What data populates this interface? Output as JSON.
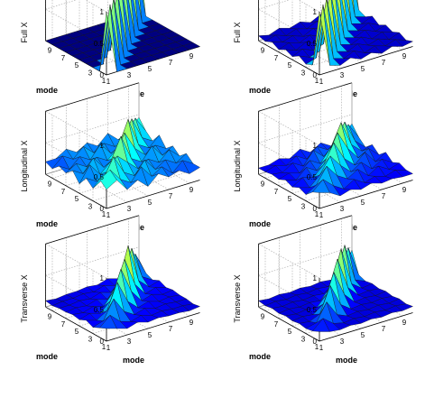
{
  "chart_data": [
    {
      "type": "surface",
      "zlabel": "Full X",
      "xlabel": "mode",
      "ylabel": "mode",
      "x_ticks": [
        "1",
        "3",
        "5",
        "7",
        "9"
      ],
      "y_ticks": [
        "1",
        "3",
        "5",
        "7",
        "9"
      ],
      "z_ticks": [
        "0",
        "0.5",
        "1"
      ],
      "zlim": [
        0,
        1
      ],
      "grid": true,
      "colormap": "jet",
      "values": [
        [
          1,
          0,
          0,
          0,
          0,
          0,
          0,
          0,
          0,
          0
        ],
        [
          0,
          1,
          0,
          0,
          0,
          0,
          0,
          0,
          0,
          0
        ],
        [
          0,
          0,
          1,
          0,
          0,
          0,
          0,
          0,
          0,
          0
        ],
        [
          0,
          0,
          0,
          1,
          0,
          0,
          0,
          0,
          0,
          0
        ],
        [
          0,
          0,
          0,
          0,
          1,
          0,
          0,
          0,
          0,
          0
        ],
        [
          0,
          0,
          0,
          0,
          0,
          1,
          0,
          0,
          0,
          0
        ],
        [
          0,
          0,
          0,
          0,
          0,
          0,
          1,
          0,
          0,
          0
        ],
        [
          0,
          0,
          0,
          0,
          0,
          0,
          0,
          1,
          0,
          0
        ],
        [
          0,
          0,
          0,
          0,
          0,
          0,
          0,
          0,
          1,
          0
        ],
        [
          0,
          0,
          0,
          0,
          0,
          0,
          0,
          0,
          0,
          1
        ]
      ]
    },
    {
      "type": "surface",
      "zlabel": "Full X",
      "xlabel": "mode",
      "ylabel": "mode",
      "x_ticks": [
        "1",
        "3",
        "5",
        "7",
        "9"
      ],
      "y_ticks": [
        "1",
        "3",
        "5",
        "7",
        "9"
      ],
      "z_ticks": [
        "0",
        "0.5",
        "1"
      ],
      "zlim": [
        0,
        1
      ],
      "grid": true,
      "colormap": "jet",
      "values": [
        [
          1,
          0.1,
          0.05,
          0.12,
          0.05,
          0.1,
          0.04,
          0.1,
          0.05,
          0.08
        ],
        [
          0.1,
          1,
          0.1,
          0.05,
          0.12,
          0.04,
          0.1,
          0.05,
          0.1,
          0.04
        ],
        [
          0.05,
          0.1,
          1,
          0.1,
          0.05,
          0.12,
          0.05,
          0.1,
          0.04,
          0.1
        ],
        [
          0.12,
          0.05,
          0.1,
          1,
          0.1,
          0.05,
          0.12,
          0.04,
          0.1,
          0.05
        ],
        [
          0.05,
          0.12,
          0.05,
          0.1,
          1,
          0.1,
          0.05,
          0.12,
          0.05,
          0.1
        ],
        [
          0.1,
          0.04,
          0.12,
          0.05,
          0.1,
          1,
          0.1,
          0.05,
          0.12,
          0.04
        ],
        [
          0.04,
          0.1,
          0.05,
          0.12,
          0.05,
          0.1,
          1,
          0.1,
          0.05,
          0.12
        ],
        [
          0.1,
          0.05,
          0.1,
          0.04,
          0.12,
          0.05,
          0.1,
          1,
          0.1,
          0.05
        ],
        [
          0.05,
          0.1,
          0.04,
          0.1,
          0.05,
          0.12,
          0.05,
          0.1,
          1,
          0.1
        ],
        [
          0.08,
          0.04,
          0.1,
          0.05,
          0.1,
          0.04,
          0.12,
          0.05,
          0.1,
          1
        ]
      ]
    },
    {
      "type": "surface",
      "zlabel": "Longitudinal X",
      "xlabel": "mode",
      "ylabel": "mode",
      "x_ticks": [
        "1",
        "3",
        "5",
        "7",
        "9"
      ],
      "y_ticks": [
        "1",
        "3",
        "5",
        "7",
        "9"
      ],
      "z_ticks": [
        "0",
        "0.5",
        "1"
      ],
      "zlim": [
        0,
        1
      ],
      "grid": true,
      "colormap": "jet",
      "values": [
        [
          0.3,
          0.4,
          0.2,
          0.3,
          0.15,
          0.3,
          0.2,
          0.25,
          0.15,
          0.2
        ],
        [
          0.4,
          0.5,
          0.3,
          0.2,
          0.4,
          0.2,
          0.3,
          0.15,
          0.3,
          0.2
        ],
        [
          0.2,
          0.3,
          0.6,
          0.3,
          0.2,
          0.4,
          0.2,
          0.3,
          0.2,
          0.3
        ],
        [
          0.3,
          0.2,
          0.3,
          0.5,
          0.35,
          0.2,
          0.3,
          0.2,
          0.35,
          0.2
        ],
        [
          0.15,
          0.4,
          0.2,
          0.35,
          0.7,
          0.3,
          0.2,
          0.4,
          0.2,
          0.3
        ],
        [
          0.3,
          0.2,
          0.4,
          0.2,
          0.3,
          0.65,
          0.35,
          0.2,
          0.3,
          0.2
        ],
        [
          0.2,
          0.3,
          0.2,
          0.3,
          0.2,
          0.35,
          0.75,
          0.3,
          0.2,
          0.35
        ],
        [
          0.25,
          0.15,
          0.3,
          0.2,
          0.4,
          0.2,
          0.3,
          0.65,
          0.3,
          0.2
        ],
        [
          0.15,
          0.3,
          0.2,
          0.35,
          0.2,
          0.3,
          0.2,
          0.3,
          0.55,
          0.3
        ],
        [
          0.2,
          0.2,
          0.3,
          0.2,
          0.3,
          0.2,
          0.35,
          0.2,
          0.3,
          0.45
        ]
      ]
    },
    {
      "type": "surface",
      "zlabel": "Longitudinal X",
      "xlabel": "mode",
      "ylabel": "mode",
      "x_ticks": [
        "1",
        "3",
        "5",
        "7",
        "9"
      ],
      "y_ticks": [
        "1",
        "3",
        "5",
        "7",
        "9"
      ],
      "z_ticks": [
        "0",
        "0.5",
        "1"
      ],
      "zlim": [
        0,
        1
      ],
      "grid": true,
      "colormap": "jet",
      "values": [
        [
          0.25,
          0.2,
          0.1,
          0.15,
          0.1,
          0.15,
          0.1,
          0.12,
          0.1,
          0.1
        ],
        [
          0.2,
          0.35,
          0.2,
          0.1,
          0.2,
          0.1,
          0.15,
          0.1,
          0.15,
          0.1
        ],
        [
          0.1,
          0.2,
          0.45,
          0.25,
          0.15,
          0.25,
          0.1,
          0.2,
          0.1,
          0.15
        ],
        [
          0.15,
          0.1,
          0.25,
          0.5,
          0.3,
          0.15,
          0.25,
          0.1,
          0.2,
          0.1
        ],
        [
          0.1,
          0.2,
          0.15,
          0.3,
          0.6,
          0.3,
          0.15,
          0.3,
          0.1,
          0.2
        ],
        [
          0.15,
          0.1,
          0.25,
          0.15,
          0.3,
          0.65,
          0.35,
          0.15,
          0.25,
          0.1
        ],
        [
          0.1,
          0.15,
          0.1,
          0.25,
          0.15,
          0.35,
          0.7,
          0.3,
          0.15,
          0.2
        ],
        [
          0.12,
          0.1,
          0.2,
          0.1,
          0.3,
          0.15,
          0.3,
          0.6,
          0.25,
          0.1
        ],
        [
          0.1,
          0.15,
          0.1,
          0.2,
          0.1,
          0.25,
          0.15,
          0.25,
          0.45,
          0.2
        ],
        [
          0.1,
          0.1,
          0.15,
          0.1,
          0.2,
          0.1,
          0.2,
          0.1,
          0.2,
          0.35
        ]
      ]
    },
    {
      "type": "surface",
      "zlabel": "Transverse X",
      "xlabel": "mode",
      "ylabel": "mode",
      "x_ticks": [
        "1",
        "3",
        "5",
        "7",
        "9"
      ],
      "y_ticks": [
        "1",
        "3",
        "5",
        "7",
        "9"
      ],
      "z_ticks": [
        "0",
        "0.5",
        "1"
      ],
      "zlim": [
        0,
        1
      ],
      "grid": true,
      "colormap": "jet",
      "values": [
        [
          0.2,
          0.15,
          0.1,
          0.15,
          0.1,
          0.12,
          0.1,
          0.1,
          0.08,
          0.1
        ],
        [
          0.15,
          0.3,
          0.15,
          0.1,
          0.15,
          0.1,
          0.12,
          0.1,
          0.1,
          0.08
        ],
        [
          0.1,
          0.15,
          0.45,
          0.2,
          0.1,
          0.15,
          0.1,
          0.12,
          0.1,
          0.1
        ],
        [
          0.15,
          0.1,
          0.2,
          0.6,
          0.25,
          0.1,
          0.15,
          0.1,
          0.12,
          0.1
        ],
        [
          0.1,
          0.15,
          0.1,
          0.25,
          0.7,
          0.3,
          0.1,
          0.15,
          0.1,
          0.12
        ],
        [
          0.12,
          0.1,
          0.15,
          0.1,
          0.3,
          0.75,
          0.3,
          0.1,
          0.15,
          0.1
        ],
        [
          0.1,
          0.12,
          0.1,
          0.15,
          0.1,
          0.3,
          0.85,
          0.25,
          0.1,
          0.15
        ],
        [
          0.1,
          0.1,
          0.12,
          0.1,
          0.15,
          0.1,
          0.25,
          0.7,
          0.2,
          0.1
        ],
        [
          0.08,
          0.1,
          0.1,
          0.12,
          0.1,
          0.15,
          0.1,
          0.2,
          0.5,
          0.15
        ],
        [
          0.1,
          0.08,
          0.1,
          0.1,
          0.12,
          0.1,
          0.15,
          0.1,
          0.15,
          0.3
        ]
      ]
    },
    {
      "type": "surface",
      "zlabel": "Transverse X",
      "xlabel": "mode",
      "ylabel": "mode",
      "x_ticks": [
        "1",
        "3",
        "5",
        "7",
        "9"
      ],
      "y_ticks": [
        "1",
        "3",
        "5",
        "7",
        "9"
      ],
      "z_ticks": [
        "0",
        "0.5",
        "1"
      ],
      "zlim": [
        0,
        1
      ],
      "grid": true,
      "colormap": "jet",
      "values": [
        [
          0.15,
          0.1,
          0.08,
          0.1,
          0.08,
          0.1,
          0.08,
          0.1,
          0.08,
          0.1
        ],
        [
          0.1,
          0.25,
          0.12,
          0.08,
          0.1,
          0.08,
          0.1,
          0.08,
          0.1,
          0.08
        ],
        [
          0.08,
          0.12,
          0.4,
          0.15,
          0.08,
          0.1,
          0.08,
          0.1,
          0.08,
          0.1
        ],
        [
          0.1,
          0.08,
          0.15,
          0.55,
          0.2,
          0.08,
          0.1,
          0.08,
          0.1,
          0.08
        ],
        [
          0.08,
          0.1,
          0.08,
          0.2,
          0.65,
          0.25,
          0.08,
          0.1,
          0.08,
          0.1
        ],
        [
          0.1,
          0.08,
          0.1,
          0.08,
          0.25,
          0.75,
          0.25,
          0.08,
          0.1,
          0.08
        ],
        [
          0.08,
          0.1,
          0.08,
          0.1,
          0.08,
          0.25,
          0.8,
          0.2,
          0.08,
          0.1
        ],
        [
          0.1,
          0.08,
          0.1,
          0.08,
          0.1,
          0.08,
          0.2,
          0.75,
          0.15,
          0.08
        ],
        [
          0.08,
          0.1,
          0.08,
          0.1,
          0.08,
          0.1,
          0.08,
          0.15,
          0.6,
          0.12
        ],
        [
          0.1,
          0.08,
          0.1,
          0.08,
          0.1,
          0.08,
          0.1,
          0.08,
          0.12,
          0.45
        ]
      ]
    }
  ]
}
